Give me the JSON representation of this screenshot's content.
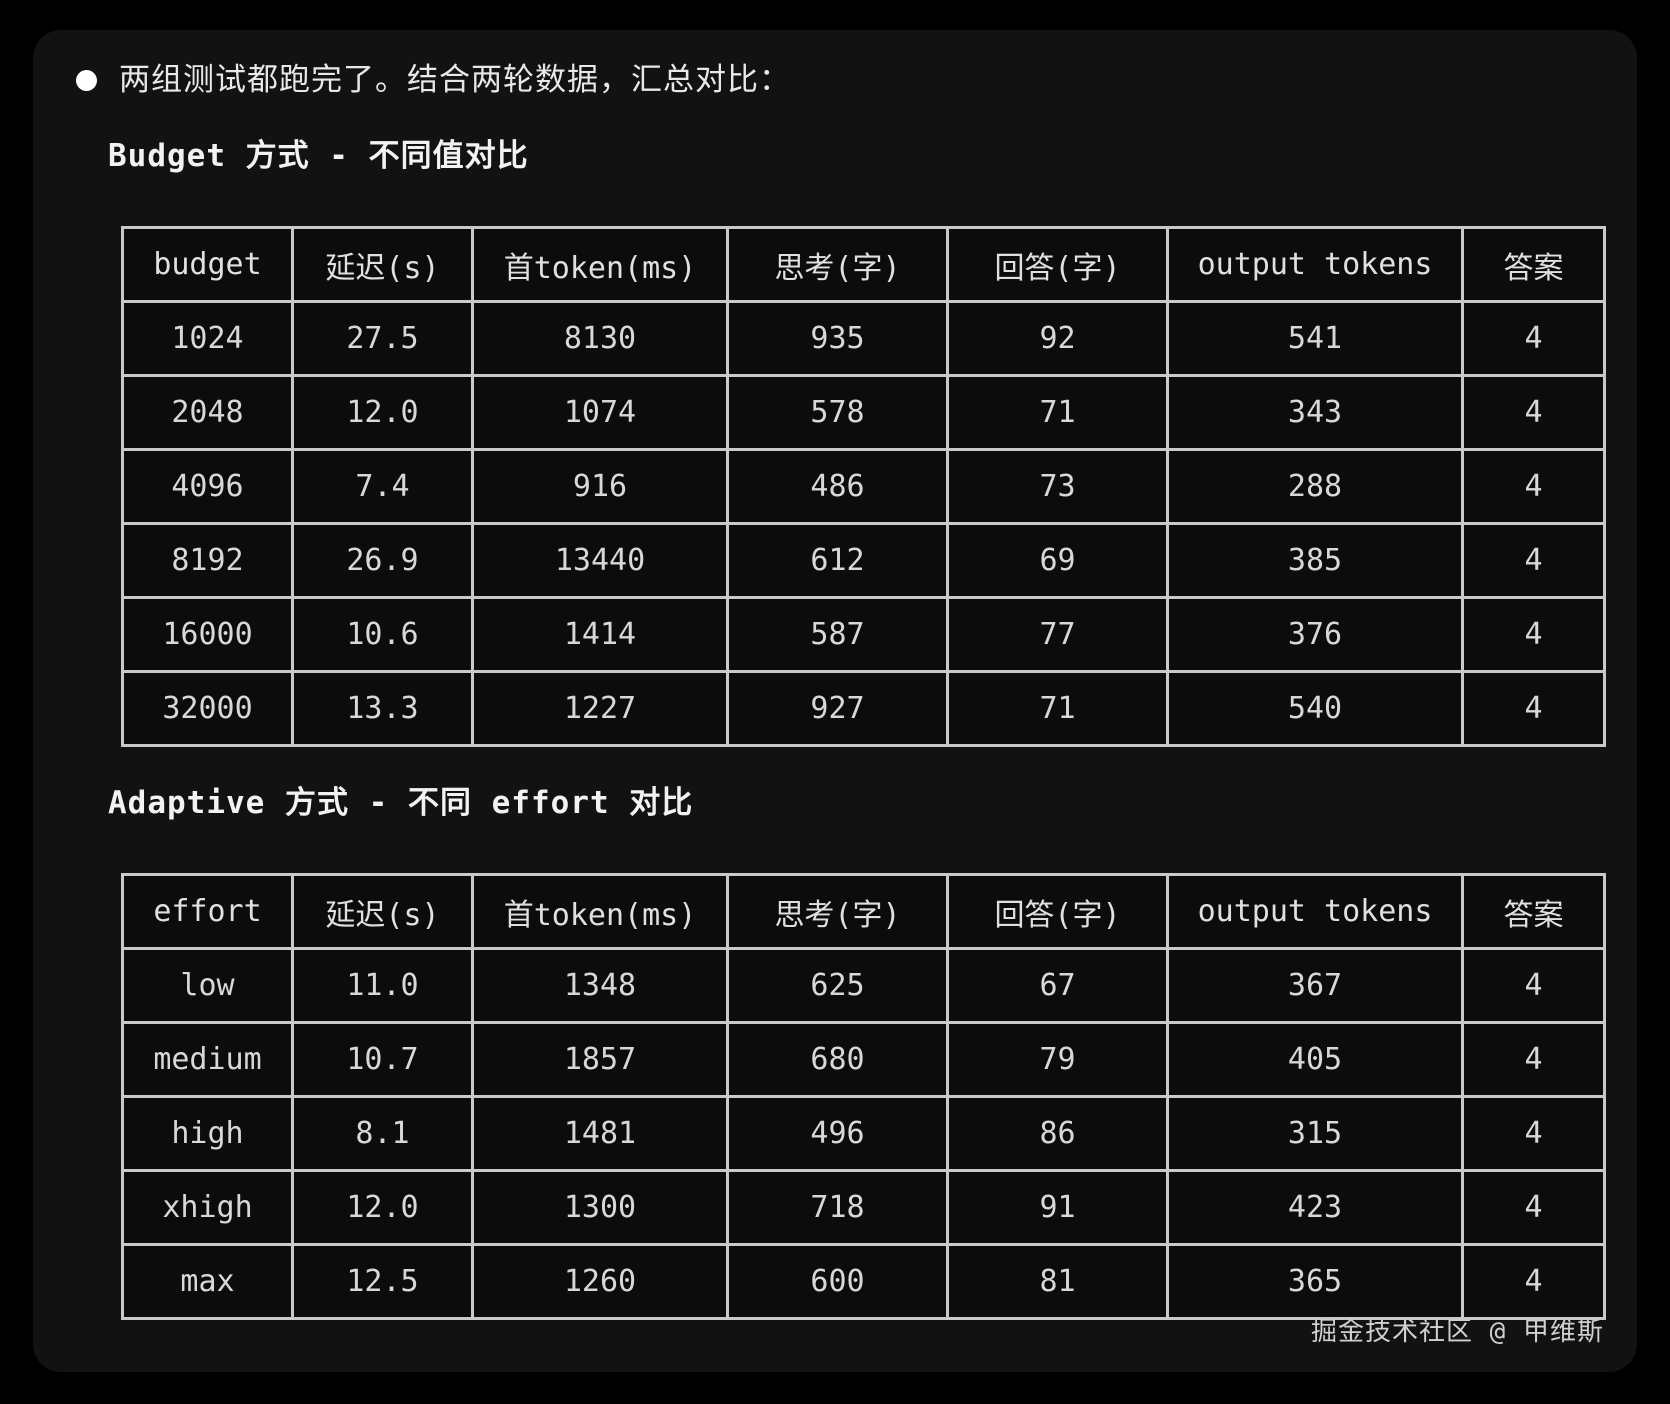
{
  "page": {
    "intro_bullet": "两组测试都跑完了。结合两轮数据，汇总对比：",
    "footer_credit": "掘金技术社区 @ 甲维斯"
  },
  "sections": [
    {
      "heading": "Budget 方式 - 不同值对比",
      "table": {
        "headers": [
          "budget",
          "延迟(s)",
          "首token(ms)",
          "思考(字)",
          "回答(字)",
          "output tokens",
          "答案"
        ],
        "rows": [
          [
            "1024",
            "27.5",
            "8130",
            "935",
            "92",
            "541",
            "4"
          ],
          [
            "2048",
            "12.0",
            "1074",
            "578",
            "71",
            "343",
            "4"
          ],
          [
            "4096",
            "7.4",
            "916",
            "486",
            "73",
            "288",
            "4"
          ],
          [
            "8192",
            "26.9",
            "13440",
            "612",
            "69",
            "385",
            "4"
          ],
          [
            "16000",
            "10.6",
            "1414",
            "587",
            "77",
            "376",
            "4"
          ],
          [
            "32000",
            "13.3",
            "1227",
            "927",
            "71",
            "540",
            "4"
          ]
        ]
      }
    },
    {
      "heading": "Adaptive 方式 - 不同 effort 对比",
      "table": {
        "headers": [
          "effort",
          "延迟(s)",
          "首token(ms)",
          "思考(字)",
          "回答(字)",
          "output tokens",
          "答案"
        ],
        "rows": [
          [
            "low",
            "11.0",
            "1348",
            "625",
            "67",
            "367",
            "4"
          ],
          [
            "medium",
            "10.7",
            "1857",
            "680",
            "79",
            "405",
            "4"
          ],
          [
            "high",
            "8.1",
            "1481",
            "496",
            "86",
            "315",
            "4"
          ],
          [
            "xhigh",
            "12.0",
            "1300",
            "718",
            "91",
            "423",
            "4"
          ],
          [
            "max",
            "12.5",
            "1260",
            "600",
            "81",
            "365",
            "4"
          ]
        ]
      }
    }
  ],
  "colors": {
    "page_background": "#000000",
    "card_background": "#121212",
    "table_border": "#c9c9c9",
    "cell_background": "#0c0c0c",
    "text_primary": "#e8e8e8"
  }
}
